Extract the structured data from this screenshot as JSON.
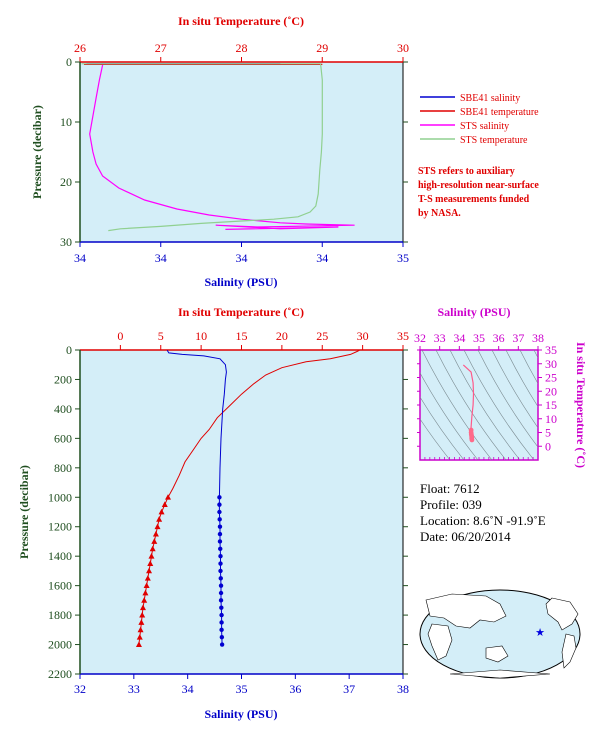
{
  "colors": {
    "plot_bg": "#d4eef8",
    "temp_axis": "#e00000",
    "sal_axis": "#0000c8",
    "pres_axis": "#1f4e1f",
    "ts_axis": "#cc00cc",
    "sbe_sal": "#0000d0",
    "sbe_temp": "#e00000",
    "sts_sal": "#ff00ff",
    "sts_temp": "#90d090",
    "sts_note": "#e00000"
  },
  "top": {
    "temp_axis_label": "In situ Temperature (˚C)",
    "sal_axis_label": "Salinity (PSU)",
    "pres_axis_label": "Pressure (decibar)",
    "legend": [
      {
        "name": "SBE41 salinity",
        "color_key": "sbe_sal"
      },
      {
        "name": "SBE41 temperature",
        "color_key": "sbe_temp"
      },
      {
        "name": "STS salinity",
        "color_key": "sts_sal"
      },
      {
        "name": "STS temperature",
        "color_key": "sts_temp"
      }
    ],
    "note_lines": [
      "STS refers to auxiliary",
      "high-resolution near-surface",
      "T-S measurements funded",
      "by NASA."
    ]
  },
  "bottom": {
    "temp_axis_label": "In situ Temperature (˚C)",
    "sal_axis_label": "Salinity (PSU)",
    "pres_axis_label": "Pressure (decibar)"
  },
  "ts": {
    "sal_axis_label": "Salinity (PSU)",
    "temp_axis_label": "In situ Temperature (˚C)"
  },
  "info": {
    "float": "Float:  7612",
    "profile": "Profile:  039",
    "location": "Location:  8.6˚N  -91.9˚E",
    "date": "Date:  06/20/2014"
  },
  "chart_data": [
    {
      "type": "line",
      "id": "near-surface-profile",
      "temperature_axis": {
        "label": "In situ Temperature (˚C)",
        "range": [
          26,
          30
        ],
        "ticks": [
          "26",
          "27",
          "28",
          "29",
          "30"
        ]
      },
      "salinity_axis": {
        "label": "Salinity (PSU)",
        "range": [
          34,
          35
        ],
        "ticks": [
          "34",
          "34",
          "34",
          "34",
          "35"
        ]
      },
      "pressure_axis": {
        "label": "Pressure (decibar)",
        "range": [
          0,
          30
        ],
        "ticks": [
          "0",
          "10",
          "20",
          "30"
        ],
        "inverted": true
      },
      "series": [
        {
          "name": "SBE41 salinity",
          "variable": "salinity",
          "points": [
            [
              34.02,
              0.3
            ],
            [
              34.62,
              0.3
            ]
          ]
        },
        {
          "name": "SBE41 temperature",
          "variable": "temperature",
          "points": [
            [
              26.05,
              0.4
            ],
            [
              29.0,
              0.4
            ]
          ]
        },
        {
          "name": "STS salinity",
          "variable": "salinity",
          "points": [
            [
              34.07,
              0.5
            ],
            [
              34.06,
              3
            ],
            [
              34.05,
              6
            ],
            [
              34.04,
              9
            ],
            [
              34.03,
              12
            ],
            [
              34.04,
              15
            ],
            [
              34.05,
              17
            ],
            [
              34.07,
              19
            ],
            [
              34.12,
              21
            ],
            [
              34.2,
              23
            ],
            [
              34.3,
              24.5
            ],
            [
              34.4,
              25.5
            ],
            [
              34.5,
              26.2
            ],
            [
              34.62,
              26.8
            ],
            [
              34.7,
              27.0
            ],
            [
              34.85,
              27.2
            ],
            [
              34.55,
              27.5
            ],
            [
              34.42,
              27.2
            ],
            [
              34.62,
              27.8
            ],
            [
              34.8,
              27.5
            ],
            [
              34.45,
              27.9
            ]
          ]
        },
        {
          "name": "STS temperature",
          "variable": "temperature",
          "points": [
            [
              26.02,
              0.3
            ],
            [
              28.98,
              0.3
            ],
            [
              29.0,
              3
            ],
            [
              29.0,
              8
            ],
            [
              29.0,
              12
            ],
            [
              28.99,
              15
            ],
            [
              28.97,
              18
            ],
            [
              28.95,
              22
            ],
            [
              28.92,
              24
            ],
            [
              28.85,
              25
            ],
            [
              28.7,
              25.8
            ],
            [
              28.4,
              26.2
            ],
            [
              28.0,
              26.5
            ],
            [
              27.5,
              26.9
            ],
            [
              27.0,
              27.4
            ],
            [
              26.5,
              27.8
            ],
            [
              26.35,
              28.1
            ]
          ]
        }
      ]
    },
    {
      "type": "line",
      "id": "full-profile",
      "temperature_axis": {
        "label": "In situ Temperature (˚C)",
        "range": [
          -5,
          35
        ],
        "ticks": [
          "0",
          "5",
          "10",
          "15",
          "20",
          "25",
          "30",
          "35"
        ]
      },
      "salinity_axis": {
        "label": "Salinity (PSU)",
        "range": [
          32,
          38
        ],
        "ticks": [
          "32",
          "33",
          "34",
          "35",
          "36",
          "37",
          "38"
        ]
      },
      "pressure_axis": {
        "label": "Pressure (decibar)",
        "range": [
          0,
          2200
        ],
        "ticks": [
          "0",
          "200",
          "400",
          "600",
          "800",
          "1000",
          "1200",
          "1400",
          "1600",
          "1800",
          "2000",
          "2200"
        ],
        "inverted": true
      },
      "series": [
        {
          "name": "SBE41 temperature",
          "variable": "temperature",
          "points": [
            [
              29.6,
              2
            ],
            [
              29.3,
              10
            ],
            [
              28.5,
              30
            ],
            [
              26,
              60
            ],
            [
              23,
              80
            ],
            [
              20,
              120
            ],
            [
              18,
              170
            ],
            [
              16.5,
              230
            ],
            [
              15,
              300
            ],
            [
              13.5,
              380
            ],
            [
              12,
              460
            ],
            [
              11,
              540
            ],
            [
              10,
              600
            ],
            [
              9,
              680
            ],
            [
              8,
              760
            ],
            [
              7.3,
              850
            ],
            [
              6.5,
              940
            ],
            [
              5.9,
              1000
            ],
            [
              5.5,
              1050
            ],
            [
              5.1,
              1100
            ],
            [
              4.8,
              1150
            ],
            [
              4.6,
              1200
            ],
            [
              4.4,
              1250
            ],
            [
              4.2,
              1300
            ],
            [
              4.0,
              1350
            ],
            [
              3.85,
              1400
            ],
            [
              3.7,
              1450
            ],
            [
              3.55,
              1500
            ],
            [
              3.4,
              1550
            ],
            [
              3.25,
              1600
            ],
            [
              3.1,
              1650
            ],
            [
              2.95,
              1700
            ],
            [
              2.8,
              1750
            ],
            [
              2.7,
              1800
            ],
            [
              2.6,
              1850
            ],
            [
              2.5,
              1900
            ],
            [
              2.4,
              1950
            ],
            [
              2.3,
              2000
            ]
          ]
        },
        {
          "name": "SBE41 salinity",
          "variable": "salinity",
          "points": [
            [
              33.62,
              2
            ],
            [
              33.65,
              20
            ],
            [
              33.9,
              30
            ],
            [
              34.3,
              40
            ],
            [
              34.6,
              60
            ],
            [
              34.7,
              100
            ],
            [
              34.72,
              150
            ],
            [
              34.7,
              200
            ],
            [
              34.68,
              300
            ],
            [
              34.65,
              400
            ],
            [
              34.62,
              600
            ],
            [
              34.6,
              800
            ],
            [
              34.59,
              1000
            ],
            [
              34.59,
              1100
            ],
            [
              34.6,
              1200
            ],
            [
              34.6,
              1300
            ],
            [
              34.61,
              1400
            ],
            [
              34.61,
              1500
            ],
            [
              34.62,
              1600
            ],
            [
              34.62,
              1700
            ],
            [
              34.63,
              1800
            ],
            [
              34.63,
              1900
            ],
            [
              34.64,
              2000
            ]
          ]
        }
      ],
      "discrete_points": {
        "pressures": [
          1000,
          1050,
          1100,
          1150,
          1200,
          1250,
          1300,
          1350,
          1400,
          1450,
          1500,
          1550,
          1600,
          1650,
          1700,
          1750,
          1800,
          1850,
          1900,
          1950,
          2000
        ]
      }
    },
    {
      "type": "scatter",
      "id": "ts-diagram",
      "x_axis": {
        "label": "Salinity (PSU)",
        "range": [
          32,
          38
        ],
        "ticks": [
          "32",
          "33",
          "34",
          "35",
          "36",
          "37",
          "38"
        ]
      },
      "y_axis": {
        "label": "In situ Temperature (˚C)",
        "range": [
          -5,
          35
        ],
        "ticks": [
          "0",
          "5",
          "10",
          "15",
          "20",
          "25",
          "30",
          "35"
        ]
      },
      "points": [
        [
          34.2,
          29.6
        ],
        [
          34.6,
          27
        ],
        [
          34.7,
          23
        ],
        [
          34.72,
          19
        ],
        [
          34.7,
          15
        ],
        [
          34.67,
          13
        ],
        [
          34.64,
          11
        ],
        [
          34.62,
          9
        ],
        [
          34.6,
          7
        ],
        [
          34.6,
          5.9
        ],
        [
          34.6,
          5
        ],
        [
          34.61,
          4.4
        ],
        [
          34.62,
          3.8
        ],
        [
          34.63,
          3.2
        ],
        [
          34.63,
          2.8
        ],
        [
          34.64,
          2.3
        ]
      ]
    }
  ]
}
